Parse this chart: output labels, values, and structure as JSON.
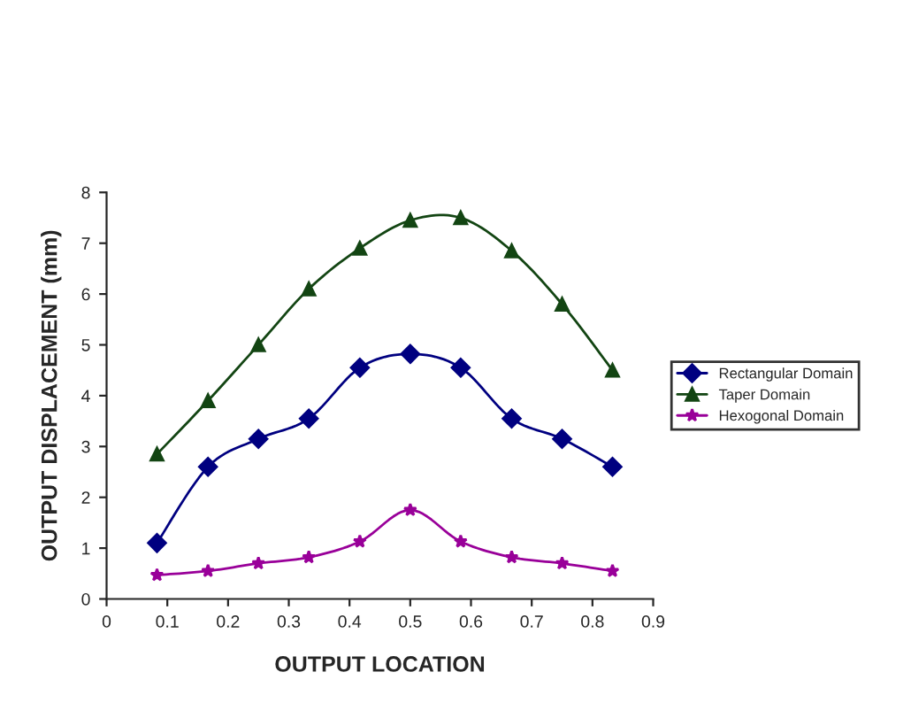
{
  "chart_data": {
    "type": "line",
    "xlabel": "OUTPUT LOCATION",
    "ylabel": "OUTPUT DISPLACEMENT (mm)",
    "x": [
      0.083,
      0.167,
      0.25,
      0.333,
      0.417,
      0.5,
      0.583,
      0.667,
      0.75,
      0.833
    ],
    "series": [
      {
        "name": "Rectangular Domain",
        "color": "#000080",
        "marker": "diamond",
        "values": [
          1.1,
          2.6,
          3.15,
          3.55,
          4.55,
          4.82,
          4.55,
          3.55,
          3.15,
          2.6
        ]
      },
      {
        "name": "Taper Domain",
        "color": "#134513",
        "marker": "triangle",
        "values": [
          2.85,
          3.9,
          5.0,
          6.1,
          6.9,
          7.45,
          7.5,
          6.85,
          5.8,
          4.5
        ]
      },
      {
        "name": "Hexogonal Domain",
        "color": "#990099",
        "marker": "star",
        "values": [
          0.47,
          0.55,
          0.7,
          0.82,
          1.13,
          1.75,
          1.13,
          0.82,
          0.7,
          0.55
        ]
      }
    ],
    "xlim": [
      0,
      0.9
    ],
    "xticks": [
      0,
      0.1,
      0.2,
      0.3,
      0.4,
      0.5,
      0.6,
      0.7,
      0.8,
      0.9
    ],
    "ylim": [
      0,
      8
    ],
    "yticks": [
      0,
      1,
      2,
      3,
      4,
      5,
      6,
      7,
      8
    ],
    "grid": false,
    "legend": "right",
    "line_style": "solid"
  }
}
